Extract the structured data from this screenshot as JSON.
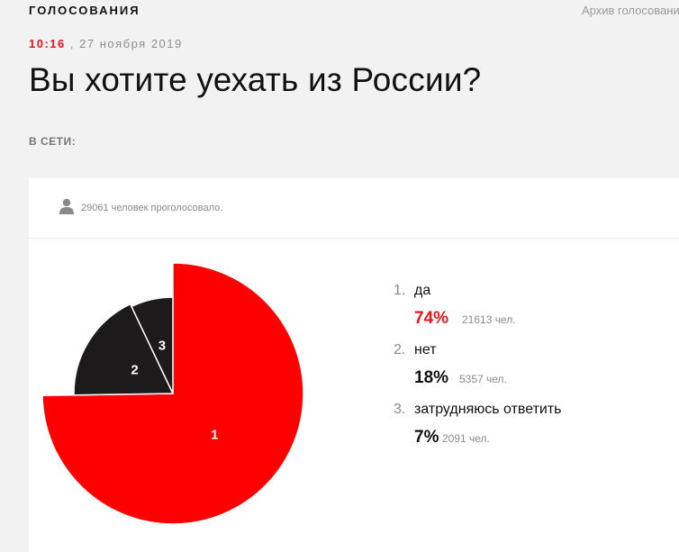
{
  "header": {
    "section": "ГОЛОСОВАНИЯ",
    "archive_link": "Архив голосований"
  },
  "meta": {
    "time": "10:16",
    "separator": ",",
    "date": "27 ноября 2019"
  },
  "title": "Вы хотите уехать из России?",
  "online_label": "В СЕТИ:",
  "poll": {
    "voters_text": "29061 человек проголосовало.",
    "icons": {
      "voters": "person-icon"
    },
    "colors": {
      "accent": "#e8141b",
      "slice_1": "#ff0000",
      "slice_other": "#1c1a1b"
    }
  },
  "chart_data": {
    "type": "pie",
    "slices": [
      {
        "label": "1",
        "value": 74
      },
      {
        "label": "2",
        "value": 18
      },
      {
        "label": "3",
        "value": 7
      }
    ]
  },
  "legend": [
    {
      "num": "1.",
      "label": "да",
      "pct": "74%",
      "count": "21613 чел."
    },
    {
      "num": "2.",
      "label": "нет",
      "pct": "18%",
      "count": "5357 чел."
    },
    {
      "num": "3.",
      "label": "затрудняюсь ответить",
      "pct": "7%",
      "count": "2091 чел."
    }
  ]
}
